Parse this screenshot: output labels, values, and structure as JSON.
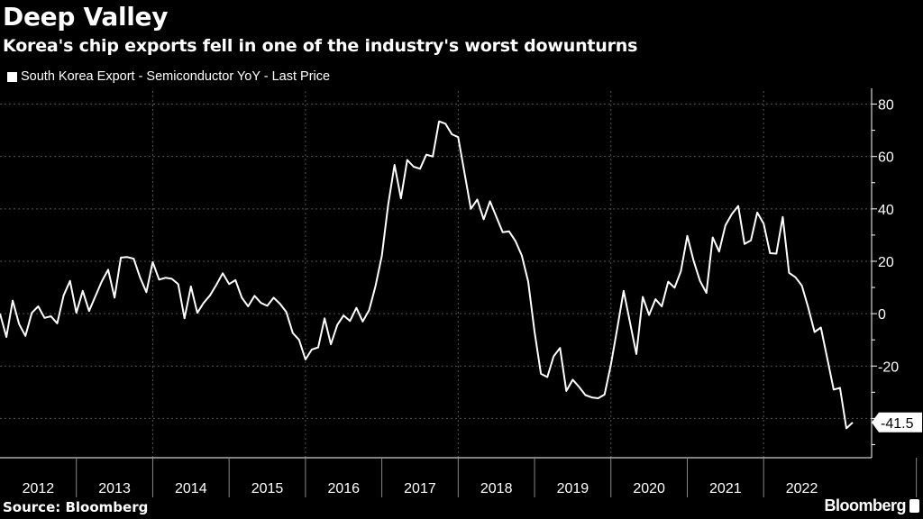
{
  "title": "Deep Valley",
  "subtitle": "Korea's chip exports fell in one of the industry's worst dowunturns",
  "source": "Source: Bloomberg",
  "brand": "Bloomberg",
  "chart_data": {
    "type": "line",
    "title": "Deep Valley",
    "subtitle": "Korea's chip exports fell in one of the industry's worst dowunturns",
    "legend": "South Korea Export - Semiconductor YoY - Last Price",
    "legend_placement": "top-left",
    "line_color": "#ffffff",
    "background": "#000000",
    "grid": true,
    "y_axis_side": "right",
    "ylim": [
      -55,
      85
    ],
    "yticks": [
      80,
      60,
      40,
      20,
      0,
      -20,
      -40
    ],
    "ytick_labels": [
      "80",
      "60",
      "40",
      "20",
      "0",
      "-20",
      ""
    ],
    "xtick_labels": [
      "2012",
      "2013",
      "2014",
      "2015",
      "2016",
      "2017",
      "2018",
      "2019",
      "2020",
      "2021",
      "2022"
    ],
    "last_value_label": "-41.5",
    "series": [
      {
        "name": "South Korea Export - Semiconductor YoY - Last Price",
        "x": [
          "2012-01",
          "2012-02",
          "2012-03",
          "2012-04",
          "2012-05",
          "2012-06",
          "2012-07",
          "2012-08",
          "2012-09",
          "2012-10",
          "2012-11",
          "2012-12",
          "2013-01",
          "2013-02",
          "2013-03",
          "2013-04",
          "2013-05",
          "2013-06",
          "2013-07",
          "2013-08",
          "2013-09",
          "2013-10",
          "2013-11",
          "2013-12",
          "2014-01",
          "2014-02",
          "2014-03",
          "2014-04",
          "2014-05",
          "2014-06",
          "2014-07",
          "2014-08",
          "2014-09",
          "2014-10",
          "2014-11",
          "2014-12",
          "2015-01",
          "2015-02",
          "2015-03",
          "2015-04",
          "2015-05",
          "2015-06",
          "2015-07",
          "2015-08",
          "2015-09",
          "2015-10",
          "2015-11",
          "2015-12",
          "2016-01",
          "2016-02",
          "2016-03",
          "2016-04",
          "2016-05",
          "2016-06",
          "2016-07",
          "2016-08",
          "2016-09",
          "2016-10",
          "2016-11",
          "2016-12",
          "2017-01",
          "2017-02",
          "2017-03",
          "2017-04",
          "2017-05",
          "2017-06",
          "2017-07",
          "2017-08",
          "2017-09",
          "2017-10",
          "2017-11",
          "2017-12",
          "2018-01",
          "2018-02",
          "2018-03",
          "2018-04",
          "2018-05",
          "2018-06",
          "2018-07",
          "2018-08",
          "2018-09",
          "2018-10",
          "2018-11",
          "2018-12",
          "2019-01",
          "2019-02",
          "2019-03",
          "2019-04",
          "2019-05",
          "2019-06",
          "2019-07",
          "2019-08",
          "2019-09",
          "2019-10",
          "2019-11",
          "2019-12",
          "2020-01",
          "2020-02",
          "2020-03",
          "2020-04",
          "2020-05",
          "2020-06",
          "2020-07",
          "2020-08",
          "2020-09",
          "2020-10",
          "2020-11",
          "2020-12",
          "2021-01",
          "2021-02",
          "2021-03",
          "2021-04",
          "2021-05",
          "2021-06",
          "2021-07",
          "2021-08",
          "2021-09",
          "2021-10",
          "2021-11",
          "2021-12",
          "2022-01",
          "2022-02",
          "2022-03",
          "2022-04",
          "2022-05",
          "2022-06",
          "2022-07",
          "2022-08",
          "2022-09",
          "2022-10",
          "2022-11",
          "2022-12",
          "2023-01",
          "2023-02",
          "2023-03"
        ],
        "values": [
          0,
          -8.9,
          5,
          -4,
          -8.5,
          0.3,
          2.8,
          -1.6,
          -1,
          -3.7,
          7,
          12.5,
          0.3,
          8.7,
          1,
          6.7,
          12.4,
          16.8,
          6.1,
          21.4,
          21.6,
          21,
          13.9,
          8.2,
          19.7,
          13,
          13.7,
          13.3,
          11.3,
          -1.8,
          10.4,
          0.3,
          4.1,
          7,
          11,
          15.4,
          11.3,
          12.8,
          6.1,
          2.8,
          6.8,
          4.1,
          3,
          6.1,
          3.8,
          0.6,
          -7.4,
          -10,
          -17.5,
          -13.7,
          -12.9,
          -1.8,
          -11.7,
          -4.3,
          -0.7,
          -2.8,
          2.2,
          -3,
          1.3,
          10.4,
          22,
          41.7,
          56.8,
          44,
          58.7,
          56.1,
          55.3,
          60.7,
          60,
          73.4,
          72.5,
          68.5,
          67.4,
          53.6,
          40,
          43.6,
          36,
          42.9,
          36.9,
          31.1,
          31.4,
          27.7,
          22.2,
          12.2,
          -6.8,
          -22.9,
          -24.2,
          -16.3,
          -13.1,
          -29.5,
          -25.2,
          -28,
          -31.1,
          -32,
          -32.3,
          -30.9,
          -19.4,
          -5.6,
          8.7,
          -3.3,
          -15.4,
          6.4,
          -0.5,
          5.5,
          2.8,
          12.2,
          9.9,
          16.2,
          29.7,
          20.2,
          12.5,
          7.9,
          29.1,
          23.7,
          33.7,
          38,
          41.1,
          26.6,
          28,
          38.6,
          34.4,
          23.1,
          22.9,
          36.9,
          15.6,
          13.9,
          10.7,
          2.4,
          -7,
          -5.3,
          -17.1,
          -29,
          -28.3,
          -43.8,
          -41.5
        ]
      }
    ]
  }
}
